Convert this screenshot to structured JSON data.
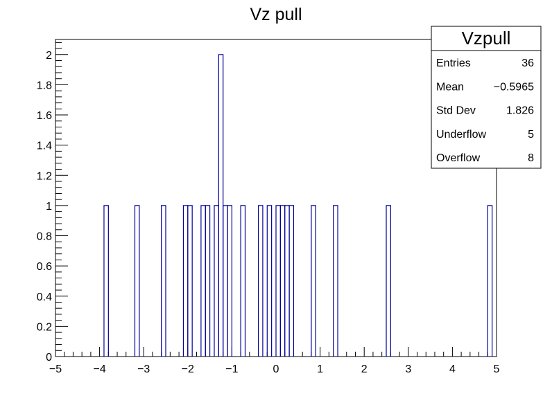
{
  "chart_data": {
    "type": "bar",
    "title": "Vz pull",
    "xlabel": "",
    "ylabel": "",
    "xlim": [
      -5,
      5
    ],
    "ylim": [
      0,
      2.1
    ],
    "bin_width": 0.1,
    "x_ticks": [
      "−5",
      "−4",
      "−3",
      "−2",
      "−1",
      "0",
      "1",
      "2",
      "3",
      "4",
      "5"
    ],
    "y_ticks": [
      "0",
      "0.2",
      "0.4",
      "0.6",
      "0.8",
      "1",
      "1.2",
      "1.4",
      "1.6",
      "1.8",
      "2"
    ],
    "bins": [
      {
        "x0": -3.9,
        "x1": -3.8,
        "count": 1
      },
      {
        "x0": -3.2,
        "x1": -3.1,
        "count": 1
      },
      {
        "x0": -2.6,
        "x1": -2.5,
        "count": 1
      },
      {
        "x0": -2.1,
        "x1": -2.0,
        "count": 1
      },
      {
        "x0": -2.0,
        "x1": -1.9,
        "count": 1
      },
      {
        "x0": -1.7,
        "x1": -1.6,
        "count": 1
      },
      {
        "x0": -1.6,
        "x1": -1.5,
        "count": 1
      },
      {
        "x0": -1.4,
        "x1": -1.3,
        "count": 1
      },
      {
        "x0": -1.3,
        "x1": -1.2,
        "count": 2
      },
      {
        "x0": -1.2,
        "x1": -1.1,
        "count": 1
      },
      {
        "x0": -1.1,
        "x1": -1.0,
        "count": 1
      },
      {
        "x0": -0.8,
        "x1": -0.7,
        "count": 1
      },
      {
        "x0": -0.4,
        "x1": -0.3,
        "count": 1
      },
      {
        "x0": -0.2,
        "x1": -0.1,
        "count": 1
      },
      {
        "x0": 0.0,
        "x1": 0.1,
        "count": 1
      },
      {
        "x0": 0.1,
        "x1": 0.2,
        "count": 1
      },
      {
        "x0": 0.2,
        "x1": 0.3,
        "count": 1
      },
      {
        "x0": 0.3,
        "x1": 0.4,
        "count": 1
      },
      {
        "x0": 0.8,
        "x1": 0.9,
        "count": 1
      },
      {
        "x0": 1.3,
        "x1": 1.4,
        "count": 1
      },
      {
        "x0": 2.5,
        "x1": 2.6,
        "count": 1
      },
      {
        "x0": 4.8,
        "x1": 4.9,
        "count": 1
      }
    ],
    "line_color": "#000099",
    "stats_box": {
      "title": "Vzpull",
      "rows": [
        {
          "label": "Entries",
          "value": "36"
        },
        {
          "label": "Mean",
          "value": "−0.5965"
        },
        {
          "label": "Std Dev",
          "value": "1.826"
        },
        {
          "label": "Underflow",
          "value": "5"
        },
        {
          "label": "Overflow",
          "value": "8"
        }
      ]
    }
  }
}
